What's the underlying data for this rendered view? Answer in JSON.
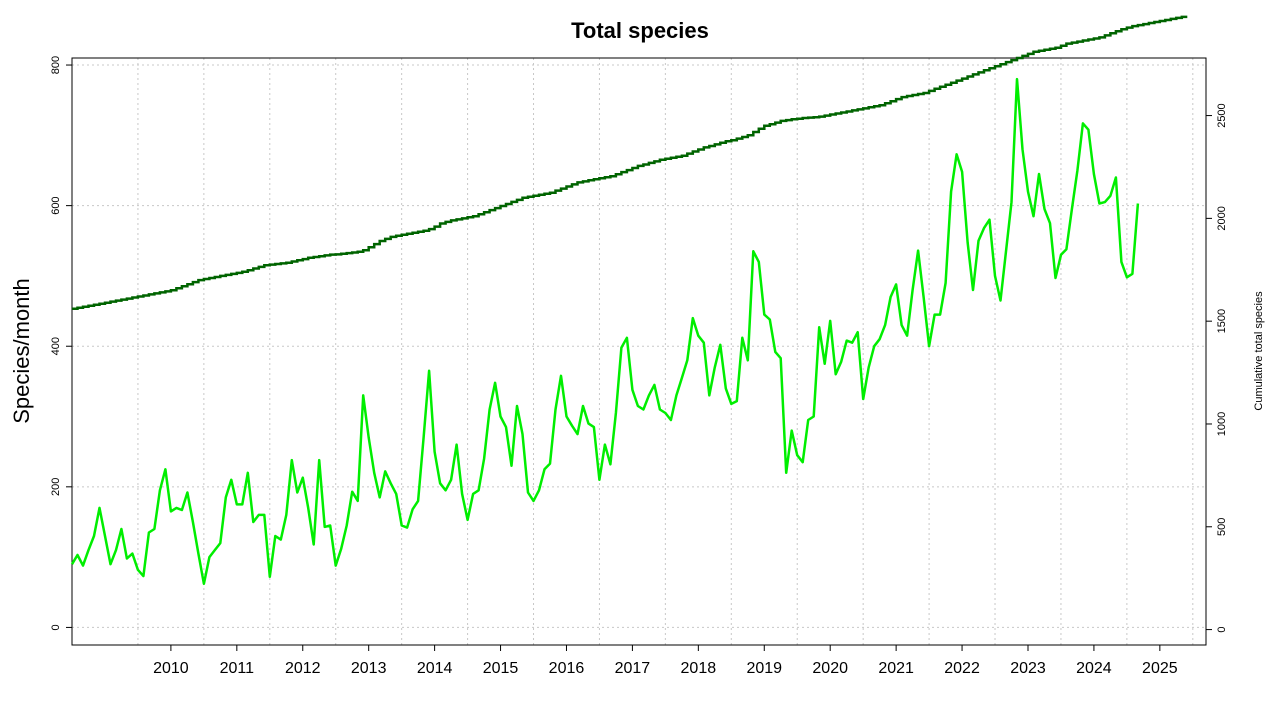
{
  "chart_data": {
    "type": "line",
    "title": "Total species",
    "ylabel_left": "Species/month",
    "ylabel_right": "Cumulative total species",
    "ylim_left": [
      -25,
      810
    ],
    "ylim_right": [
      -75,
      2780
    ],
    "xlim": [
      2009.0,
      2026.2
    ],
    "yticks_left": [
      "0",
      "200",
      "400",
      "600",
      "800"
    ],
    "yticks_right": [
      "0",
      "500",
      "1000",
      "1500",
      "2000",
      "2500"
    ],
    "xticks": [
      "2010",
      "2011",
      "2012",
      "2013",
      "2014",
      "2015",
      "2016",
      "2017",
      "2018",
      "2019",
      "2020",
      "2021",
      "2022",
      "2023",
      "2024",
      "2025"
    ],
    "grid": true,
    "colors": {
      "monthly": "#00ee00",
      "cumulative": "#006400",
      "grid": "#c8c8c8",
      "axis": "#000000"
    },
    "series": [
      {
        "axis": "left",
        "start": 2009.0,
        "step_months": 1,
        "values": [
          90,
          103,
          88,
          110,
          130,
          170,
          130,
          90,
          110,
          140,
          98,
          105,
          82,
          73,
          135,
          140,
          195,
          225,
          165,
          170,
          167,
          192,
          150,
          105,
          62,
          100,
          110,
          120,
          185,
          210,
          175,
          175,
          220,
          150,
          160,
          160,
          72,
          130,
          125,
          160,
          238,
          192,
          213,
          170,
          118,
          238,
          143,
          145,
          88,
          112,
          145,
          193,
          180,
          330,
          270,
          220,
          185,
          222,
          205,
          190,
          145,
          142,
          168,
          180,
          270,
          365,
          250,
          205,
          195,
          210,
          260,
          190,
          153,
          190,
          195,
          240,
          310,
          348,
          300,
          285,
          230,
          315,
          275,
          192,
          180,
          195,
          225,
          233,
          310,
          358,
          300,
          287,
          275,
          315,
          290,
          285,
          210,
          260,
          232,
          305,
          398,
          412,
          338,
          315,
          310,
          330,
          345,
          310,
          305,
          295,
          330,
          355,
          380,
          440,
          415,
          405,
          330,
          370,
          402,
          340,
          318,
          322,
          412,
          380,
          535,
          520,
          445,
          438,
          392,
          383,
          220,
          280,
          245,
          235,
          295,
          300,
          427,
          375,
          436,
          360,
          378,
          408,
          405,
          420,
          325,
          370,
          400,
          410,
          430,
          470,
          488,
          430,
          415,
          480,
          536,
          470,
          400,
          445,
          445,
          490,
          620,
          673,
          648,
          548,
          480,
          550,
          568,
          580,
          500,
          465,
          535,
          605,
          780,
          680,
          620,
          585,
          645,
          595,
          575,
          497,
          530,
          538,
          595,
          650,
          717,
          708,
          645,
          603,
          605,
          614,
          640,
          520,
          498,
          503,
          603
        ]
      },
      {
        "axis": "right",
        "start": 2009.0,
        "step_months": 1,
        "values": [
          1560,
          1565,
          1570,
          1575,
          1580,
          1585,
          1590,
          1595,
          1600,
          1605,
          1610,
          1615,
          1620,
          1625,
          1630,
          1635,
          1640,
          1645,
          1650,
          1660,
          1670,
          1680,
          1690,
          1700,
          1705,
          1710,
          1715,
          1720,
          1725,
          1730,
          1735,
          1740,
          1748,
          1756,
          1764,
          1772,
          1775,
          1778,
          1781,
          1784,
          1790,
          1796,
          1802,
          1808,
          1812,
          1816,
          1820,
          1824,
          1825,
          1828,
          1831,
          1834,
          1838,
          1845,
          1860,
          1875,
          1890,
          1900,
          1910,
          1915,
          1920,
          1925,
          1930,
          1935,
          1940,
          1948,
          1960,
          1975,
          1983,
          1990,
          1995,
          2000,
          2005,
          2010,
          2020,
          2030,
          2040,
          2050,
          2060,
          2070,
          2080,
          2090,
          2100,
          2105,
          2110,
          2115,
          2120,
          2125,
          2135,
          2145,
          2155,
          2165,
          2175,
          2180,
          2185,
          2190,
          2195,
          2200,
          2205,
          2215,
          2225,
          2235,
          2245,
          2255,
          2262,
          2270,
          2277,
          2285,
          2290,
          2295,
          2300,
          2305,
          2315,
          2325,
          2335,
          2345,
          2352,
          2360,
          2368,
          2375,
          2380,
          2388,
          2396,
          2404,
          2420,
          2436,
          2450,
          2458,
          2466,
          2474,
          2478,
          2482,
          2485,
          2488,
          2490,
          2492,
          2495,
          2500,
          2505,
          2510,
          2515,
          2520,
          2525,
          2530,
          2535,
          2540,
          2545,
          2550,
          2560,
          2570,
          2580,
          2590,
          2595,
          2600,
          2605,
          2610,
          2620,
          2630,
          2640,
          2650,
          2660,
          2670,
          2680,
          2690,
          2700,
          2710,
          2720,
          2730,
          2740,
          2750,
          2760,
          2770,
          2780,
          2790,
          2800,
          2810,
          2815,
          2820,
          2825,
          2830,
          2840,
          2850,
          2855,
          2860,
          2865,
          2870,
          2875,
          2880,
          2890,
          2900,
          2910,
          2920,
          2928,
          2935,
          2940,
          2945,
          2950,
          2955,
          2960,
          2965,
          2970,
          2975,
          2980
        ]
      }
    ]
  }
}
